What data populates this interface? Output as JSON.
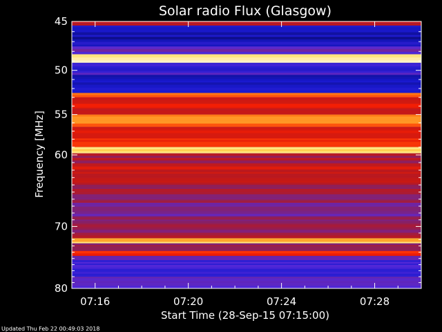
{
  "chart_data": {
    "type": "heatmap",
    "title": "Solar radio Flux (Glasgow)",
    "xlabel": "Start Time (28-Sep-15 07:15:00)",
    "ylabel": "Frequency [MHz]",
    "x_tick_labels": [
      "07:16",
      "07:20",
      "07:24",
      "07:28"
    ],
    "x_tick_minutes": [
      1,
      5,
      9,
      13
    ],
    "x_range_minutes": [
      0,
      15
    ],
    "y_ticks": [
      45,
      50,
      55,
      60,
      70,
      80
    ],
    "y_range": [
      45,
      80
    ],
    "y_scale": "log",
    "colormap": [
      "#0a0a6e",
      "#1a1ad0",
      "#5a2ad8",
      "#8a2060",
      "#c01818",
      "#ff2000",
      "#ff8a1a",
      "#ffd84a",
      "#fff8d8"
    ],
    "bands": [
      {
        "from": 45.0,
        "to": 45.4,
        "level": 0.5
      },
      {
        "from": 45.4,
        "to": 47.5,
        "level": 0.1
      },
      {
        "from": 47.5,
        "to": 48.3,
        "level": 0.25
      },
      {
        "from": 48.3,
        "to": 49.2,
        "level": 0.95
      },
      {
        "from": 49.2,
        "to": 50.5,
        "level": 0.2
      },
      {
        "from": 50.5,
        "to": 52.5,
        "level": 0.12
      },
      {
        "from": 52.5,
        "to": 53.0,
        "level": 0.7
      },
      {
        "from": 53.0,
        "to": 55.0,
        "level": 0.55
      },
      {
        "from": 55.0,
        "to": 56.5,
        "level": 0.72
      },
      {
        "from": 56.5,
        "to": 59.0,
        "level": 0.58
      },
      {
        "from": 59.0,
        "to": 59.8,
        "level": 0.9
      },
      {
        "from": 59.8,
        "to": 61.5,
        "level": 0.45
      },
      {
        "from": 61.5,
        "to": 64.0,
        "level": 0.5
      },
      {
        "from": 64.0,
        "to": 66.5,
        "level": 0.4
      },
      {
        "from": 66.5,
        "to": 68.5,
        "level": 0.35
      },
      {
        "from": 68.5,
        "to": 70.5,
        "level": 0.38
      },
      {
        "from": 70.5,
        "to": 71.8,
        "level": 0.42
      },
      {
        "from": 71.8,
        "to": 72.6,
        "level": 0.85
      },
      {
        "from": 72.6,
        "to": 73.8,
        "level": 0.4
      },
      {
        "from": 73.8,
        "to": 74.6,
        "level": 0.6
      },
      {
        "from": 74.6,
        "to": 80.0,
        "level": 0.22
      }
    ],
    "updated": "Updated Thu Feb 22 00:49:03 2018"
  }
}
